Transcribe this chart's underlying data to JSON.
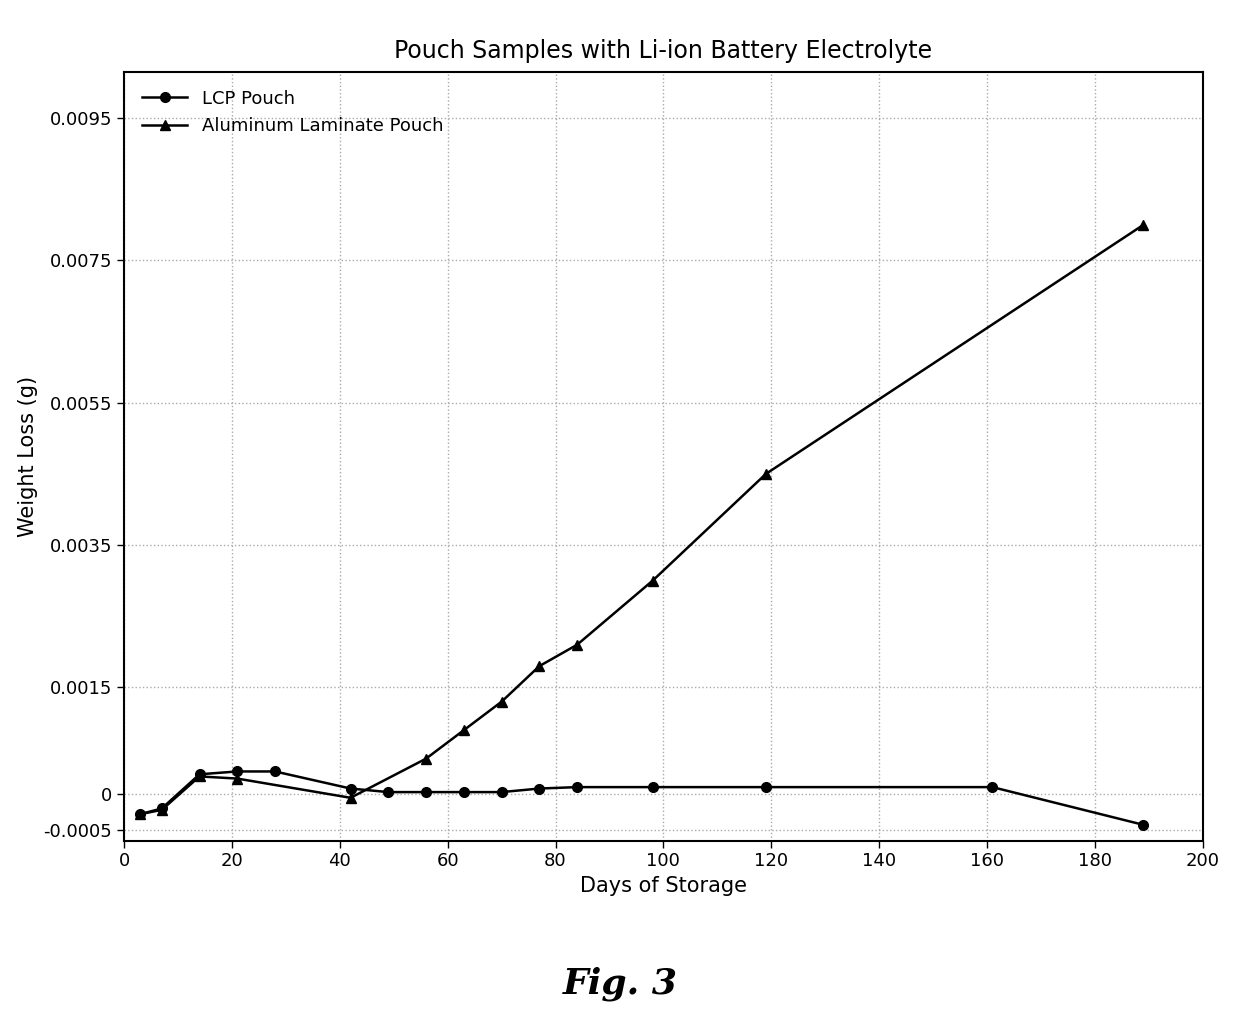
{
  "title": "Pouch Samples with Li-ion Battery Electrolyte",
  "xlabel": "Days of Storage",
  "ylabel": "Weight Loss (g)",
  "fig_label": "Fig. 3",
  "lcp_x": [
    3,
    7,
    14,
    21,
    28,
    42,
    49,
    56,
    63,
    70,
    77,
    84,
    98,
    119,
    161,
    189
  ],
  "lcp_y": [
    -0.00028,
    -0.0002,
    0.00028,
    0.00032,
    0.00032,
    8e-05,
    3e-05,
    3e-05,
    3e-05,
    3e-05,
    8e-05,
    0.0001,
    0.0001,
    0.0001,
    0.0001,
    -0.00043
  ],
  "alp_x": [
    3,
    7,
    14,
    21,
    42,
    56,
    63,
    70,
    77,
    84,
    98,
    119,
    189
  ],
  "alp_y": [
    -0.00028,
    -0.00022,
    0.00025,
    0.00022,
    -5e-05,
    0.0005,
    0.0009,
    0.0013,
    0.0018,
    0.0021,
    0.003,
    0.0045,
    0.008
  ],
  "ylim": [
    -0.00065,
    0.01015
  ],
  "xlim": [
    0,
    200
  ],
  "yticks": [
    -0.0005,
    0.0,
    0.0015,
    0.0035,
    0.0055,
    0.0075,
    0.0095
  ],
  "xticks": [
    0,
    20,
    40,
    60,
    80,
    100,
    120,
    140,
    160,
    180,
    200
  ],
  "line_color": "#000000",
  "marker_lcp": "o",
  "marker_alp": "^",
  "markersize": 7,
  "linewidth": 1.8,
  "grid_color": "#aaaaaa",
  "background_color": "#ffffff",
  "title_fontsize": 17,
  "label_fontsize": 15,
  "tick_fontsize": 13,
  "legend_fontsize": 13,
  "fig_label_fontsize": 26
}
